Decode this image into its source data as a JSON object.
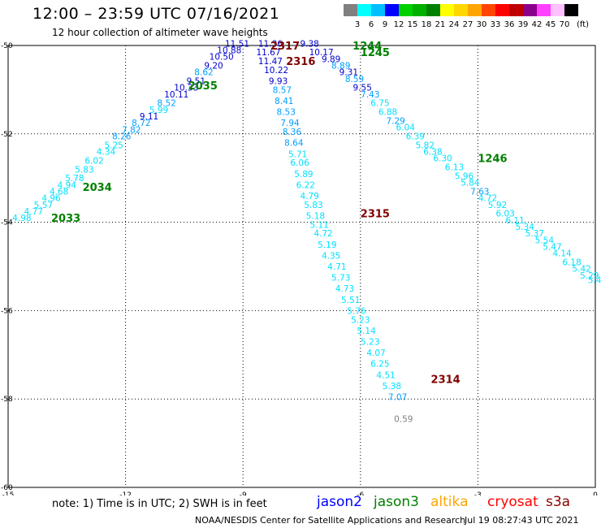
{
  "header": {
    "title": "12:00 – 23:59 UTC 07/16/2021",
    "subtitle": "12 hour collection of altimeter wave heights"
  },
  "colorbar": {
    "unit": "(ft)",
    "labels": [
      "3",
      "6",
      "9",
      "12",
      "15",
      "18",
      "21",
      "24",
      "27",
      "30",
      "33",
      "36",
      "39",
      "42",
      "45",
      "70"
    ],
    "colors": [
      "#808080",
      "#00ffff",
      "#00bfff",
      "#0000ff",
      "#00d000",
      "#00b000",
      "#008000",
      "#ffff00",
      "#ffd700",
      "#ffa500",
      "#ff4500",
      "#ff0000",
      "#c00000",
      "#8b008b",
      "#ff40ff",
      "#ffc0ff",
      "#000000"
    ]
  },
  "axes": {
    "x_ticks": [
      "-15",
      "-12",
      "-9",
      "-6",
      "-3",
      "0"
    ],
    "y_ticks": [
      "-50",
      "-52",
      "-54",
      "-56",
      "-58",
      "-60"
    ],
    "xlim": [
      -15,
      0
    ],
    "ylim": [
      -60,
      -50
    ]
  },
  "footer": {
    "note": "note: 1) Time is in UTC; 2) SWH is in feet",
    "credit": "NOAA/NESDIS Center for Satellite Applications and Research",
    "stamp": "Jul 19 08:27:43 UTC 2021"
  },
  "satellites": [
    {
      "name": "jason2",
      "color": "#0000ff"
    },
    {
      "name": "jason3",
      "color": "#008000"
    },
    {
      "name": "altika",
      "color": "#ffa500"
    },
    {
      "name": "cryosat",
      "color": "#ff0000"
    },
    {
      "name": "s3a",
      "color": "#8b0000"
    }
  ],
  "map": {
    "colors": {
      "cyan": "#00e0ff",
      "sky": "#00a0ff",
      "blue": "#0000d0",
      "green": "#008000",
      "maroon": "#800000",
      "gray": "#808080"
    },
    "track_labels": [
      {
        "text": "2033",
        "lon": -13.9,
        "lat": -53.9,
        "color": "#008000"
      },
      {
        "text": "2034",
        "lon": -13.1,
        "lat": -53.2,
        "color": "#008000"
      },
      {
        "text": "2035",
        "lon": -10.4,
        "lat": -50.9,
        "color": "#008000"
      },
      {
        "text": "2317",
        "lon": -8.3,
        "lat": -50.0,
        "color": "#800000"
      },
      {
        "text": "2316",
        "lon": -7.9,
        "lat": -50.35,
        "color": "#800000"
      },
      {
        "text": "1244",
        "lon": -6.2,
        "lat": -50.0,
        "color": "#008000"
      },
      {
        "text": "1245",
        "lon": -6.0,
        "lat": -50.15,
        "color": "#008000"
      },
      {
        "text": "1246",
        "lon": -3.0,
        "lat": -52.55,
        "color": "#008000"
      },
      {
        "text": "2315",
        "lon": -6.0,
        "lat": -53.8,
        "color": "#800000"
      },
      {
        "text": "2314",
        "lon": -4.2,
        "lat": -57.55,
        "color": "#800000"
      }
    ],
    "tracks": [
      {
        "name": "jason3-2033-2035",
        "points": [
          {
            "lon": -14.65,
            "lat": -53.9,
            "swh": "4.98",
            "color": "#00e0ff"
          },
          {
            "lon": -14.35,
            "lat": -53.75,
            "swh": "4.77",
            "color": "#00e0ff"
          },
          {
            "lon": -14.1,
            "lat": -53.6,
            "swh": "5.57",
            "color": "#00e0ff"
          },
          {
            "lon": -13.9,
            "lat": -53.45,
            "swh": "4.96",
            "color": "#00e0ff"
          },
          {
            "lon": -13.7,
            "lat": -53.3,
            "swh": "4.68",
            "color": "#00e0ff"
          },
          {
            "lon": -13.5,
            "lat": -53.15,
            "swh": "4.94",
            "color": "#00e0ff"
          },
          {
            "lon": -13.3,
            "lat": -53.0,
            "swh": "5.78",
            "color": "#00e0ff"
          },
          {
            "lon": -13.05,
            "lat": -52.8,
            "swh": "5.83",
            "color": "#00e0ff"
          },
          {
            "lon": -12.8,
            "lat": -52.6,
            "swh": "6.02",
            "color": "#00e0ff"
          },
          {
            "lon": -12.5,
            "lat": -52.4,
            "swh": "4.34",
            "color": "#00e0ff"
          },
          {
            "lon": -12.3,
            "lat": -52.25,
            "swh": "5.25",
            "color": "#00e0ff"
          },
          {
            "lon": -12.1,
            "lat": -52.05,
            "swh": "8.26",
            "color": "#00a0ff"
          },
          {
            "lon": -11.85,
            "lat": -51.9,
            "swh": "7.82",
            "color": "#00a0ff"
          },
          {
            "lon": -11.6,
            "lat": -51.75,
            "swh": "8.72",
            "color": "#00a0ff"
          },
          {
            "lon": -11.4,
            "lat": -51.6,
            "swh": "9.11",
            "color": "#0000d0"
          },
          {
            "lon": -11.15,
            "lat": -51.45,
            "swh": "5.99",
            "color": "#00e0ff"
          },
          {
            "lon": -10.95,
            "lat": -51.3,
            "swh": "8.52",
            "color": "#00a0ff"
          },
          {
            "lon": -10.7,
            "lat": -51.1,
            "swh": "10.11",
            "color": "#0000d0"
          },
          {
            "lon": -10.45,
            "lat": -50.95,
            "swh": "10.33",
            "color": "#0000d0"
          },
          {
            "lon": -10.2,
            "lat": -50.8,
            "swh": "9.51",
            "color": "#0000d0"
          },
          {
            "lon": -10.0,
            "lat": -50.6,
            "swh": "8.62",
            "color": "#00a0ff"
          },
          {
            "lon": -9.75,
            "lat": -50.45,
            "swh": "9.20",
            "color": "#0000d0"
          },
          {
            "lon": -9.55,
            "lat": -50.25,
            "swh": "10.50",
            "color": "#0000d0"
          },
          {
            "lon": -9.35,
            "lat": -50.1,
            "swh": "10.88",
            "color": "#0000d0"
          },
          {
            "lon": -9.15,
            "lat": -49.95,
            "swh": "11.51",
            "color": "#0000d0"
          }
        ]
      },
      {
        "name": "cryosat-2314-2317",
        "points": [
          {
            "lon": -8.3,
            "lat": -49.95,
            "swh": "11.36",
            "color": "#0000d0"
          },
          {
            "lon": -8.35,
            "lat": -50.15,
            "swh": "11.67",
            "color": "#0000d0"
          },
          {
            "lon": -8.3,
            "lat": -50.35,
            "swh": "11.47",
            "color": "#0000d0"
          },
          {
            "lon": -8.15,
            "lat": -50.55,
            "swh": "10.22",
            "color": "#0000d0"
          },
          {
            "lon": -8.1,
            "lat": -50.8,
            "swh": "9.93",
            "color": "#0000d0"
          },
          {
            "lon": -8.0,
            "lat": -51.0,
            "swh": "8.57",
            "color": "#00a0ff"
          },
          {
            "lon": -7.95,
            "lat": -51.25,
            "swh": "8.41",
            "color": "#00a0ff"
          },
          {
            "lon": -7.9,
            "lat": -51.5,
            "swh": "8.53",
            "color": "#00a0ff"
          },
          {
            "lon": -7.8,
            "lat": -51.75,
            "swh": "7.94",
            "color": "#00a0ff"
          },
          {
            "lon": -7.75,
            "lat": -51.95,
            "swh": "8.36",
            "color": "#00a0ff"
          },
          {
            "lon": -7.7,
            "lat": -52.2,
            "swh": "8.64",
            "color": "#00a0ff"
          },
          {
            "lon": -7.6,
            "lat": -52.45,
            "swh": "5.71",
            "color": "#00e0ff"
          },
          {
            "lon": -7.55,
            "lat": -52.65,
            "swh": "6.06",
            "color": "#00e0ff"
          },
          {
            "lon": -7.45,
            "lat": -52.9,
            "swh": "5.89",
            "color": "#00e0ff"
          },
          {
            "lon": -7.4,
            "lat": -53.15,
            "swh": "6.22",
            "color": "#00e0ff"
          },
          {
            "lon": -7.3,
            "lat": -53.4,
            "swh": "4.79",
            "color": "#00e0ff"
          },
          {
            "lon": -7.2,
            "lat": -53.6,
            "swh": "5.83",
            "color": "#00e0ff"
          },
          {
            "lon": -7.15,
            "lat": -53.85,
            "swh": "5.18",
            "color": "#00e0ff"
          },
          {
            "lon": -7.05,
            "lat": -54.05,
            "swh": "5.11",
            "color": "#00e0ff"
          },
          {
            "lon": -6.95,
            "lat": -54.25,
            "swh": "4.72",
            "color": "#00e0ff"
          },
          {
            "lon": -6.85,
            "lat": -54.5,
            "swh": "5.19",
            "color": "#00e0ff"
          },
          {
            "lon": -6.75,
            "lat": -54.75,
            "swh": "4.35",
            "color": "#00e0ff"
          },
          {
            "lon": -6.6,
            "lat": -55.0,
            "swh": "4.71",
            "color": "#00e0ff"
          },
          {
            "lon": -6.5,
            "lat": -55.25,
            "swh": "5.73",
            "color": "#00e0ff"
          },
          {
            "lon": -6.4,
            "lat": -55.5,
            "swh": "4.73",
            "color": "#00e0ff"
          },
          {
            "lon": -6.25,
            "lat": -55.75,
            "swh": "5.51",
            "color": "#00e0ff"
          },
          {
            "lon": -6.1,
            "lat": -56.0,
            "swh": "5.76",
            "color": "#00e0ff"
          },
          {
            "lon": -6.0,
            "lat": -56.2,
            "swh": "5.23",
            "color": "#00e0ff"
          },
          {
            "lon": -5.85,
            "lat": -56.45,
            "swh": "5.14",
            "color": "#00e0ff"
          },
          {
            "lon": -5.75,
            "lat": -56.7,
            "swh": "5.23",
            "color": "#00e0ff"
          },
          {
            "lon": -5.6,
            "lat": -56.95,
            "swh": "4.07",
            "color": "#00e0ff"
          },
          {
            "lon": -5.5,
            "lat": -57.2,
            "swh": "6.25",
            "color": "#00e0ff"
          },
          {
            "lon": -5.35,
            "lat": -57.45,
            "swh": "4.51",
            "color": "#00e0ff"
          },
          {
            "lon": -5.2,
            "lat": -57.7,
            "swh": "5.38",
            "color": "#00e0ff"
          },
          {
            "lon": -5.05,
            "lat": -57.95,
            "swh": "7.07",
            "color": "#00a0ff"
          },
          {
            "lon": -4.9,
            "lat": -58.45,
            "swh": "0.59",
            "color": "#808080"
          }
        ]
      },
      {
        "name": "jason3-1244-1246",
        "points": [
          {
            "lon": -7.3,
            "lat": -49.95,
            "swh": "9.38",
            "color": "#0000d0"
          },
          {
            "lon": -7.0,
            "lat": -50.15,
            "swh": "10.17",
            "color": "#0000d0"
          },
          {
            "lon": -6.75,
            "lat": -50.3,
            "swh": "9.89",
            "color": "#0000d0"
          },
          {
            "lon": -6.5,
            "lat": -50.45,
            "swh": "8.89",
            "color": "#00a0ff"
          },
          {
            "lon": -6.3,
            "lat": -50.6,
            "swh": "9.31",
            "color": "#0000d0"
          },
          {
            "lon": -6.15,
            "lat": -50.75,
            "swh": "8.59",
            "color": "#00a0ff"
          },
          {
            "lon": -5.95,
            "lat": -50.95,
            "swh": "9.55",
            "color": "#0000d0"
          },
          {
            "lon": -5.75,
            "lat": -51.1,
            "swh": "7.43",
            "color": "#00a0ff"
          },
          {
            "lon": -5.5,
            "lat": -51.3,
            "swh": "6.75",
            "color": "#00e0ff"
          },
          {
            "lon": -5.3,
            "lat": -51.5,
            "swh": "6.88",
            "color": "#00e0ff"
          },
          {
            "lon": -5.1,
            "lat": -51.7,
            "swh": "7.29",
            "color": "#00a0ff"
          },
          {
            "lon": -4.85,
            "lat": -51.85,
            "swh": "6.04",
            "color": "#00e0ff"
          },
          {
            "lon": -4.6,
            "lat": -52.05,
            "swh": "6.39",
            "color": "#00e0ff"
          },
          {
            "lon": -4.35,
            "lat": -52.25,
            "swh": "5.82",
            "color": "#00e0ff"
          },
          {
            "lon": -4.15,
            "lat": -52.4,
            "swh": "6.38",
            "color": "#00e0ff"
          },
          {
            "lon": -3.9,
            "lat": -52.55,
            "swh": "6.30",
            "color": "#00e0ff"
          },
          {
            "lon": -3.6,
            "lat": -52.75,
            "swh": "6.13",
            "color": "#00e0ff"
          },
          {
            "lon": -3.35,
            "lat": -52.95,
            "swh": "5.96",
            "color": "#00e0ff"
          },
          {
            "lon": -3.2,
            "lat": -53.1,
            "swh": "5.84",
            "color": "#00e0ff"
          },
          {
            "lon": -2.95,
            "lat": -53.3,
            "swh": "7.63",
            "color": "#00a0ff"
          },
          {
            "lon": -2.75,
            "lat": -53.45,
            "swh": "4.72",
            "color": "#00e0ff"
          },
          {
            "lon": -2.5,
            "lat": -53.6,
            "swh": "5.92",
            "color": "#00e0ff"
          },
          {
            "lon": -2.3,
            "lat": -53.8,
            "swh": "6.03",
            "color": "#00e0ff"
          },
          {
            "lon": -2.05,
            "lat": -53.95,
            "swh": "6.11",
            "color": "#00e0ff"
          },
          {
            "lon": -1.8,
            "lat": -54.1,
            "swh": "5.34",
            "color": "#00e0ff"
          },
          {
            "lon": -1.55,
            "lat": -54.25,
            "swh": "5.37",
            "color": "#00e0ff"
          },
          {
            "lon": -1.3,
            "lat": -54.4,
            "swh": "5.54",
            "color": "#00e0ff"
          },
          {
            "lon": -1.1,
            "lat": -54.55,
            "swh": "5.47",
            "color": "#00e0ff"
          },
          {
            "lon": -0.85,
            "lat": -54.7,
            "swh": "4.14",
            "color": "#00e0ff"
          },
          {
            "lon": -0.6,
            "lat": -54.9,
            "swh": "6.18",
            "color": "#00e0ff"
          },
          {
            "lon": -0.35,
            "lat": -55.05,
            "swh": "5.42",
            "color": "#00e0ff"
          },
          {
            "lon": -0.15,
            "lat": -55.2,
            "swh": "5.29",
            "color": "#00e0ff"
          },
          {
            "lon": 0.05,
            "lat": -55.3,
            "swh": "5.44",
            "color": "#00e0ff"
          }
        ]
      }
    ]
  }
}
